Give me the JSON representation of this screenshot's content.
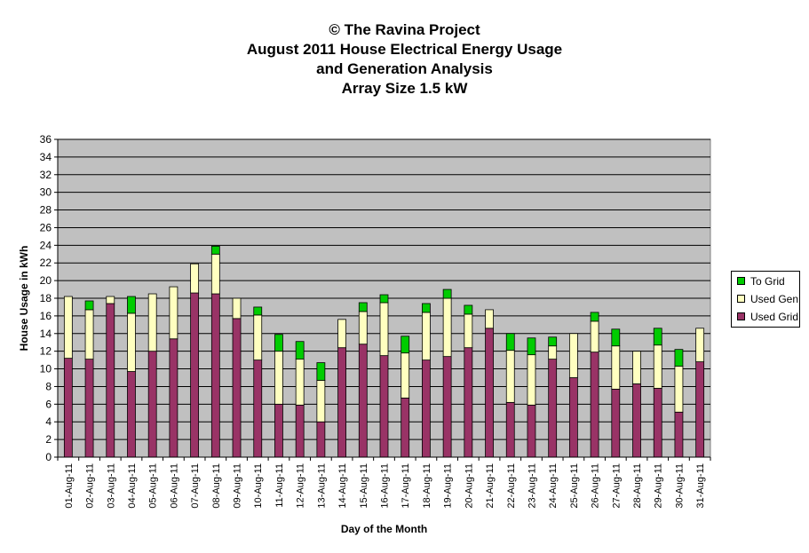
{
  "chart_data": {
    "type": "bar",
    "stacked": true,
    "title_lines": [
      "© The Ravina Project",
      "August 2011 House Electrical Energy Usage",
      "and Generation Analysis",
      "Array Size 1.5 kW"
    ],
    "xlabel": "Day of the Month",
    "ylabel": "House Usage in kWh",
    "ylim": [
      0,
      36
    ],
    "ytick_step": 2,
    "grid": true,
    "legend_position": "right",
    "categories": [
      "01-Aug-11",
      "02-Aug-11",
      "03-Aug-11",
      "04-Aug-11",
      "05-Aug-11",
      "06-Aug-11",
      "07-Aug-11",
      "08-Aug-11",
      "09-Aug-11",
      "10-Aug-11",
      "11-Aug-11",
      "12-Aug-11",
      "13-Aug-11",
      "14-Aug-11",
      "15-Aug-11",
      "16-Aug-11",
      "17-Aug-11",
      "18-Aug-11",
      "19-Aug-11",
      "20-Aug-11",
      "21-Aug-11",
      "22-Aug-11",
      "23-Aug-11",
      "24-Aug-11",
      "25-Aug-11",
      "26-Aug-11",
      "27-Aug-11",
      "28-Aug-11",
      "29-Aug-11",
      "30-Aug-11",
      "31-Aug-11"
    ],
    "series": [
      {
        "name": "Used Grid",
        "color": "#993366",
        "values": [
          11.2,
          11.1,
          17.4,
          9.7,
          12.0,
          13.4,
          18.6,
          18.5,
          15.7,
          11.0,
          6.0,
          5.9,
          4.0,
          12.4,
          12.8,
          11.5,
          6.7,
          11.0,
          11.4,
          12.4,
          14.6,
          6.2,
          5.9,
          11.1,
          9.0,
          11.9,
          7.7,
          8.3,
          7.8,
          5.1,
          10.8
        ]
      },
      {
        "name": "Used Gen",
        "color": "#ffffc0",
        "values": [
          7.0,
          5.6,
          0.8,
          6.6,
          6.5,
          5.9,
          3.3,
          4.5,
          2.3,
          5.1,
          6.0,
          5.2,
          4.7,
          3.2,
          3.7,
          6.0,
          5.1,
          5.4,
          6.6,
          3.8,
          2.1,
          5.9,
          5.7,
          1.5,
          5.0,
          3.5,
          4.9,
          3.7,
          4.9,
          5.2,
          3.8
        ]
      },
      {
        "name": "To Grid",
        "color": "#00cc00",
        "values": [
          0,
          1.0,
          0,
          1.9,
          0,
          0,
          0,
          0.9,
          0,
          0.9,
          1.9,
          2.0,
          2.0,
          0,
          1.0,
          0.9,
          1.9,
          1.0,
          1.0,
          1.0,
          0,
          1.9,
          1.9,
          1.0,
          0,
          1.0,
          1.9,
          0,
          1.9,
          1.9,
          0
        ]
      }
    ]
  }
}
